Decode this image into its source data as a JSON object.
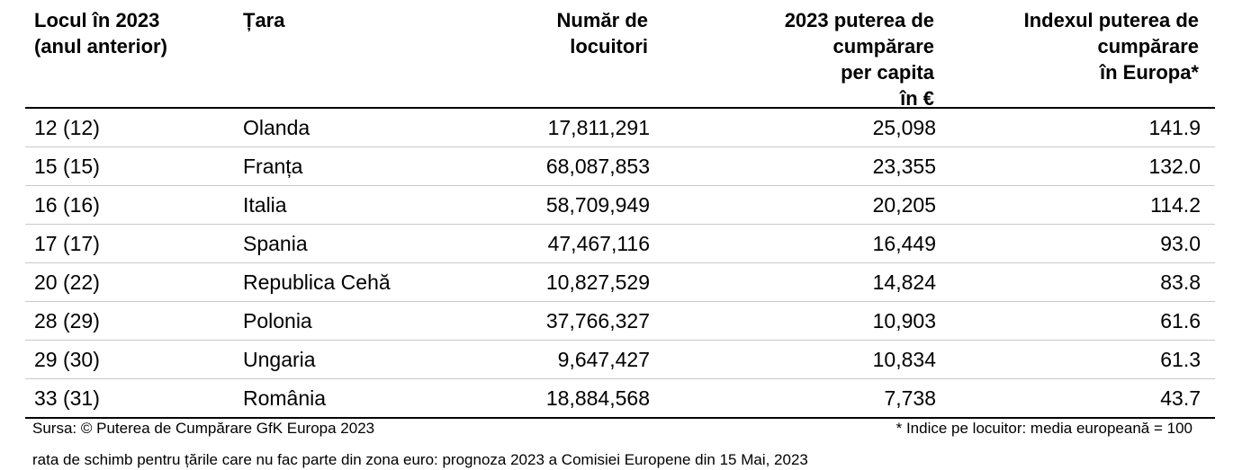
{
  "table": {
    "headers": [
      "Locul în 2023\n(anul anterior)",
      "Țara",
      "Număr de\nlocuitori",
      "2023 puterea de\ncumpărare\nper capita\nîn €",
      "Indexul puterea de\ncumpărare\nîn Europa*"
    ],
    "rows": [
      [
        "12 (12)",
        "Olanda",
        "17,811,291",
        "25,098",
        "141.9"
      ],
      [
        "15 (15)",
        "Franța",
        "68,087,853",
        "23,355",
        "132.0"
      ],
      [
        "16 (16)",
        "Italia",
        "58,709,949",
        "20,205",
        "114.2"
      ],
      [
        "17 (17)",
        "Spania",
        "47,467,116",
        "16,449",
        "93.0"
      ],
      [
        "20 (22)",
        "Republica Cehă",
        "10,827,529",
        "14,824",
        "83.8"
      ],
      [
        "28 (29)",
        "Polonia",
        "37,766,327",
        "10,903",
        "61.6"
      ],
      [
        "29 (30)",
        "Ungaria",
        "9,647,427",
        "10,834",
        "61.3"
      ],
      [
        "33 (31)",
        "România",
        "18,884,568",
        "7,738",
        "43.7"
      ]
    ]
  },
  "footer": {
    "source": "Sursa: © Puterea  de Cumpărare GfK Europa 2023",
    "note": "* Indice pe locuitor: media europeană = 100",
    "exchange": "rata de schimb pentru țările care nu fac parte din zona euro: prognoza 2023 a  Comisiei Europene din 15 Mai, 2023"
  }
}
